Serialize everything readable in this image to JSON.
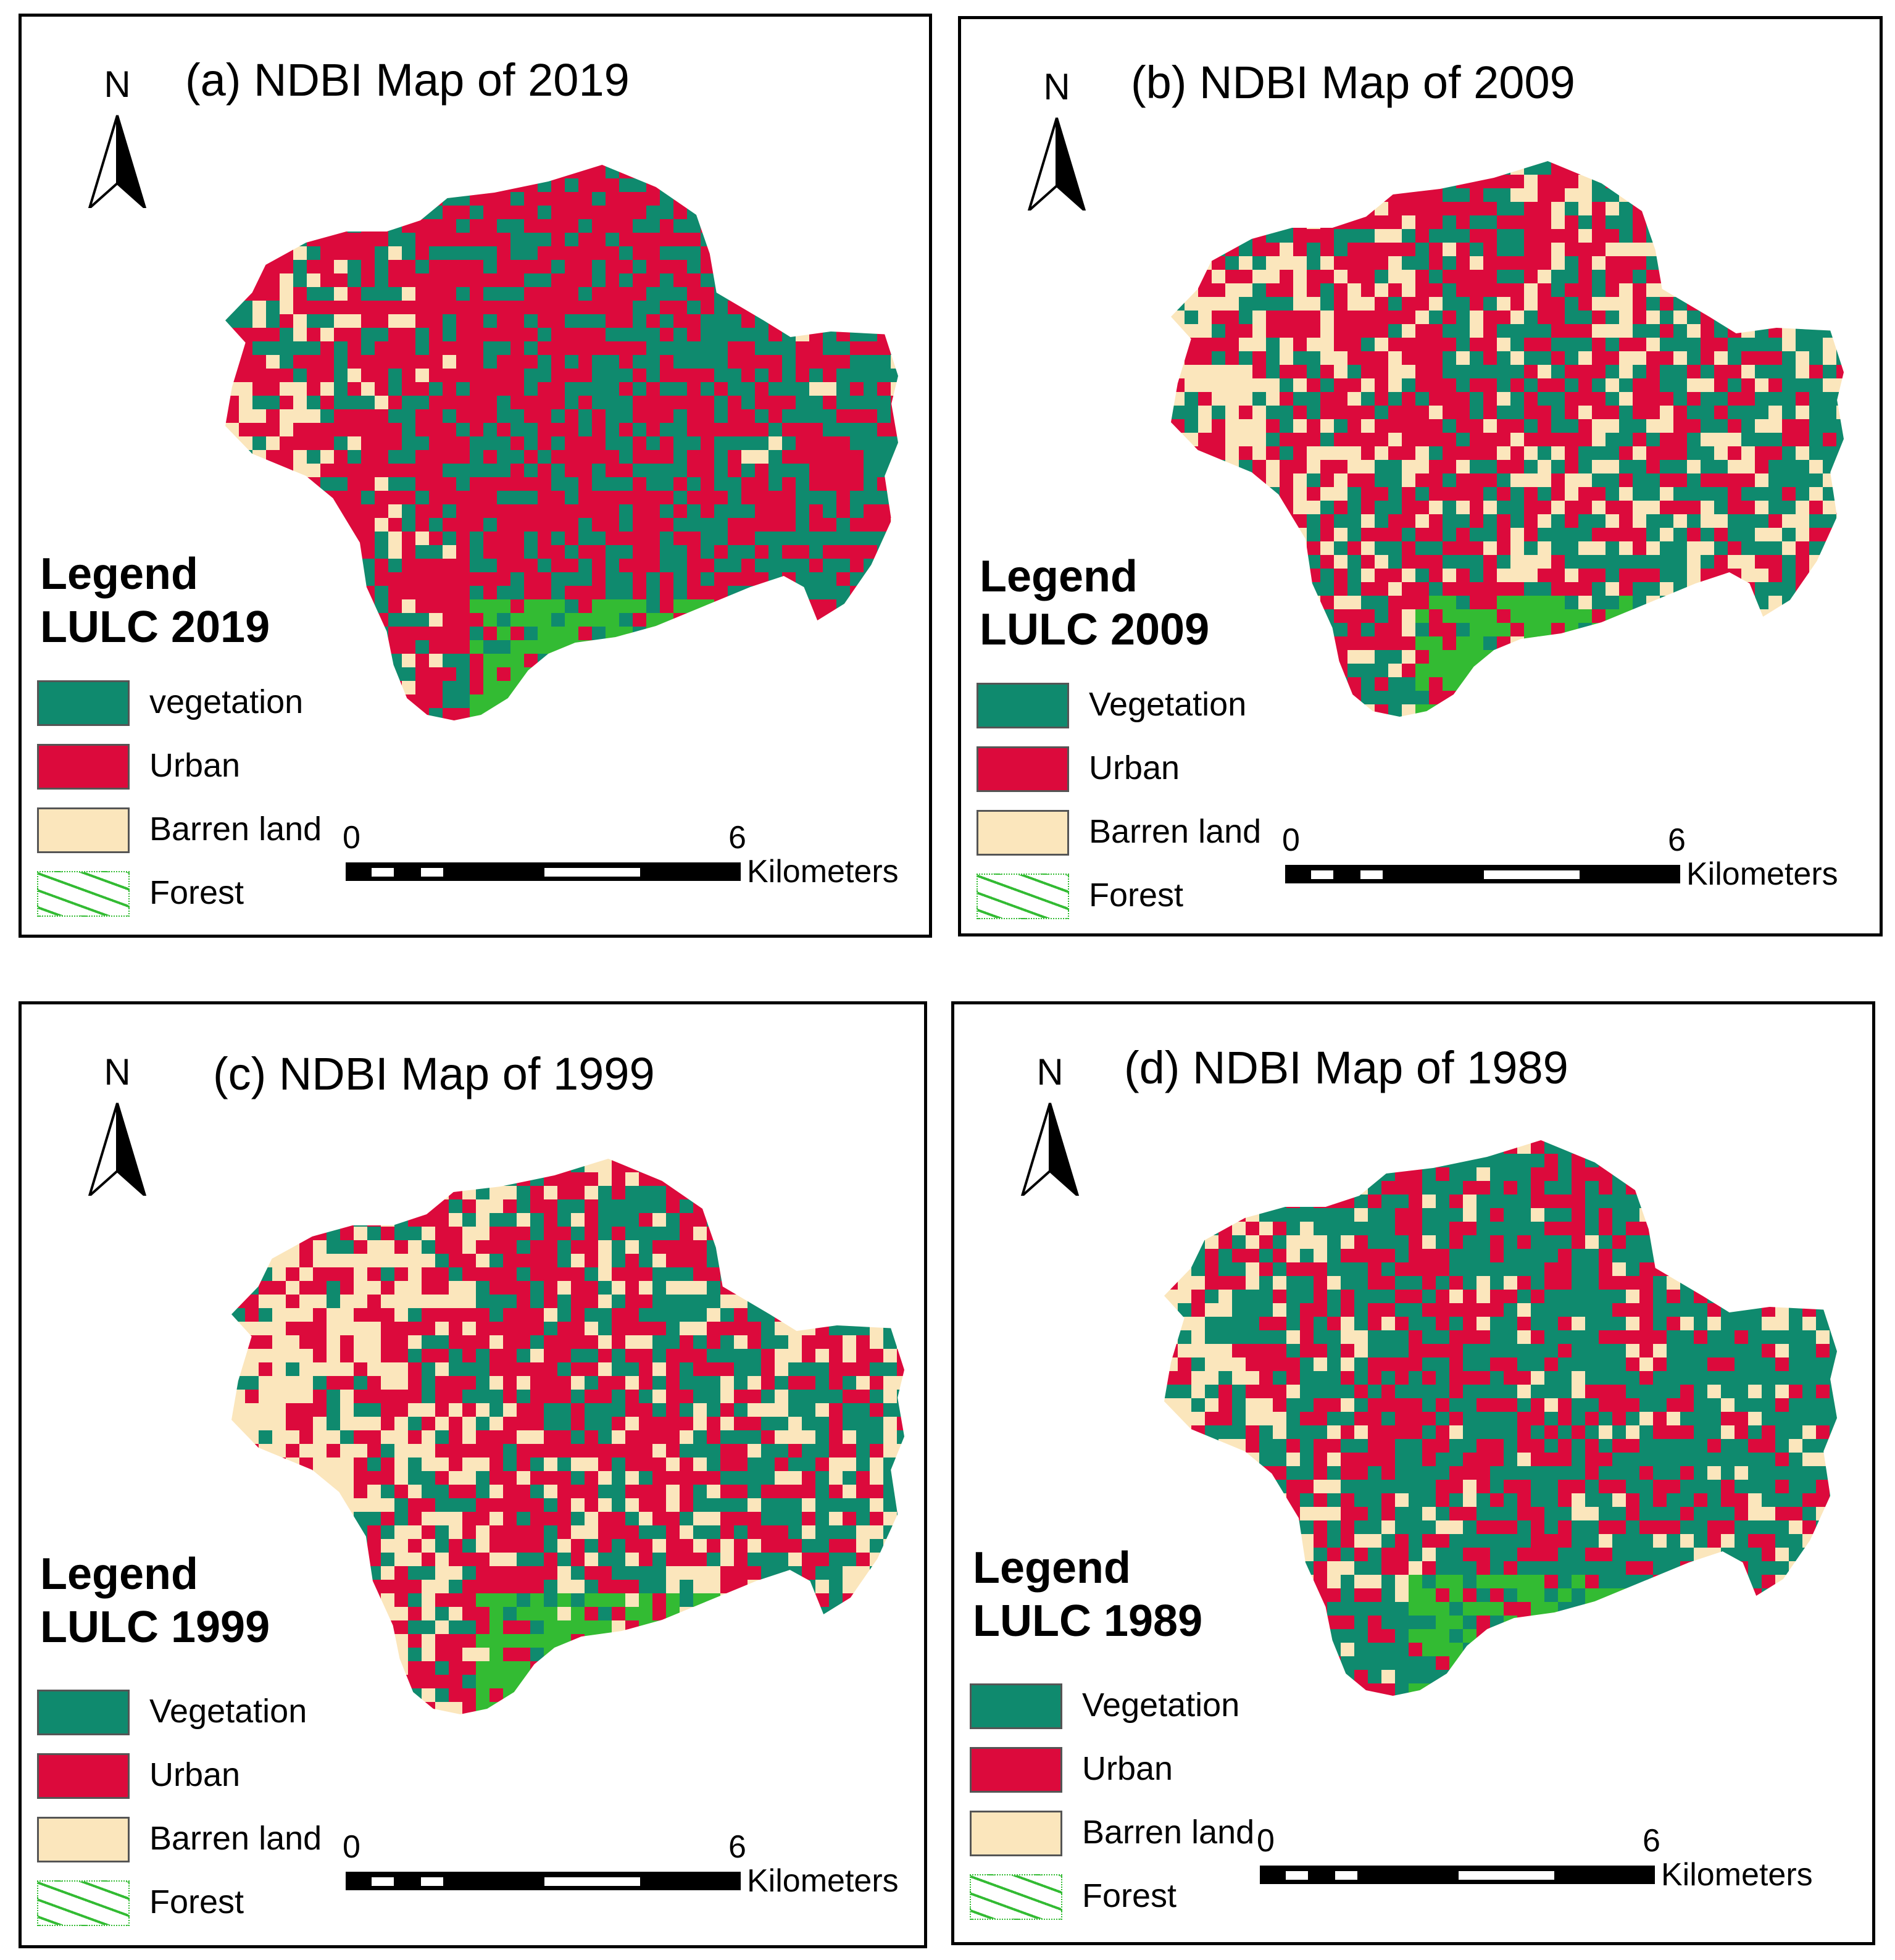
{
  "colors": {
    "vegetation": "#0f8a6e",
    "urban": "#dc0a3c",
    "barren": "#fbe6bc",
    "forest": "#33bb33"
  },
  "panels": [
    {
      "title": "(a) NDBI Map of 2019",
      "north_label": "N",
      "legend_title": "Legend",
      "legend_subtitle": "LULC 2019",
      "legend_items": [
        "vegetation",
        "Urban",
        "Barren land",
        "Forest"
      ],
      "scale": {
        "start": "0",
        "end": "6",
        "unit": "Kilometers"
      }
    },
    {
      "title": "(b) NDBI Map of  2009",
      "north_label": "N",
      "legend_title": "Legend",
      "legend_subtitle": "LULC 2009",
      "legend_items": [
        "Vegetation",
        "Urban",
        "Barren land",
        "Forest"
      ],
      "scale": {
        "start": "0",
        "end": "6",
        "unit": "Kilometers"
      }
    },
    {
      "title": "(c) NDBI Map of 1999",
      "north_label": "N",
      "legend_title": "Legend",
      "legend_subtitle": "LULC 1999",
      "legend_items": [
        "Vegetation",
        "Urban",
        "Barren land",
        "Forest"
      ],
      "scale": {
        "start": "0",
        "end": "6",
        "unit": "Kilometers"
      }
    },
    {
      "title": "(d) NDBI Map of 1989",
      "north_label": "N",
      "legend_title": "Legend",
      "legend_subtitle": "LULC 1989",
      "legend_items": [
        "Vegetation",
        "Urban",
        "Barren land",
        "Forest"
      ],
      "scale": {
        "start": "0",
        "end": "6",
        "unit": "Kilometers"
      }
    }
  ]
}
